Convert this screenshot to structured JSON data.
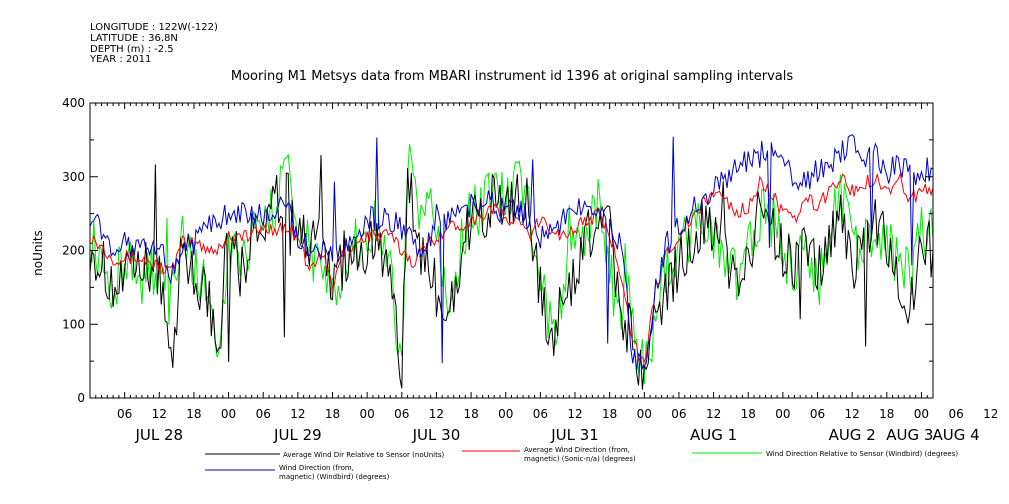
{
  "header": {
    "lines": [
      "LONGITUDE : 122W(-122)",
      "LATITUDE : 36.8N",
      "DEPTH (m) : -2.5",
      "YEAR : 2011"
    ]
  },
  "chart_data": {
    "type": "line",
    "title": "Mooring M1 Metsys data from MBARI instrument id 1396 at original sampling intervals",
    "ylabel": "noUnits",
    "ylim": [
      0,
      400
    ],
    "yticks": [
      0,
      100,
      200,
      300,
      400
    ],
    "xlim_hours": [
      0,
      146
    ],
    "x_hour_labels": [
      "06",
      "12",
      "18",
      "00",
      "06",
      "12",
      "18",
      "00",
      "06",
      "12",
      "18",
      "00",
      "06",
      "12",
      "18",
      "00",
      "06",
      "12",
      "18",
      "00",
      "06",
      "12",
      "18",
      "00",
      "06",
      "12",
      "18",
      "00",
      "06",
      "12",
      "18",
      "00"
    ],
    "day_labels": [
      "JUL 28",
      "JUL 29",
      "JUL 30",
      "JUL 31",
      "AUG 1",
      "AUG 2",
      "AUG 3",
      "AUG 4"
    ],
    "series": [
      {
        "name": "Average Wind Dir Relative to Sensor (noUnits)",
        "color": "#000000",
        "keypoints": [
          [
            0,
            210
          ],
          [
            4,
            150
          ],
          [
            8,
            170
          ],
          [
            12,
            180
          ],
          [
            14,
            40
          ],
          [
            16,
            210
          ],
          [
            18,
            170
          ],
          [
            21,
            120
          ],
          [
            22,
            40
          ],
          [
            24,
            230
          ],
          [
            26,
            170
          ],
          [
            28,
            220
          ],
          [
            30,
            240
          ],
          [
            34,
            280
          ],
          [
            36,
            230
          ],
          [
            38,
            200
          ],
          [
            40,
            210
          ],
          [
            42,
            150
          ],
          [
            44,
            190
          ],
          [
            46,
            200
          ],
          [
            48,
            200
          ],
          [
            50,
            230
          ],
          [
            52,
            150
          ],
          [
            54,
            20
          ],
          [
            55,
            300
          ],
          [
            57,
            200
          ],
          [
            60,
            150
          ],
          [
            62,
            100
          ],
          [
            66,
            250
          ],
          [
            68,
            240
          ],
          [
            70,
            270
          ],
          [
            72,
            240
          ],
          [
            74,
            280
          ],
          [
            76,
            240
          ],
          [
            78,
            140
          ],
          [
            80,
            80
          ],
          [
            82,
            140
          ],
          [
            84,
            160
          ],
          [
            86,
            230
          ],
          [
            88,
            220
          ],
          [
            90,
            240
          ],
          [
            92,
            100
          ],
          [
            94,
            100
          ],
          [
            95,
            20
          ],
          [
            97,
            60
          ],
          [
            98,
            110
          ],
          [
            100,
            150
          ],
          [
            104,
            220
          ],
          [
            106,
            230
          ],
          [
            108,
            240
          ],
          [
            110,
            200
          ],
          [
            112,
            150
          ],
          [
            114,
            200
          ],
          [
            116,
            250
          ],
          [
            118,
            230
          ],
          [
            120,
            200
          ],
          [
            122,
            170
          ],
          [
            124,
            200
          ],
          [
            126,
            170
          ],
          [
            128,
            200
          ],
          [
            130,
            260
          ],
          [
            132,
            180
          ],
          [
            134,
            200
          ],
          [
            136,
            230
          ],
          [
            138,
            210
          ],
          [
            140,
            150
          ],
          [
            142,
            130
          ],
          [
            144,
            210
          ],
          [
            146,
            200
          ]
        ]
      },
      {
        "name": "Average Wind Direction (from, magnetic) (Sonic-n/a) (degrees)",
        "color": "#ff0000",
        "keypoints": [
          [
            0,
            220
          ],
          [
            4,
            190
          ],
          [
            8,
            190
          ],
          [
            12,
            180
          ],
          [
            14,
            170
          ],
          [
            16,
            210
          ],
          [
            18,
            210
          ],
          [
            22,
            200
          ],
          [
            24,
            220
          ],
          [
            28,
            220
          ],
          [
            30,
            230
          ],
          [
            34,
            230
          ],
          [
            36,
            220
          ],
          [
            38,
            170
          ],
          [
            40,
            200
          ],
          [
            42,
            150
          ],
          [
            44,
            200
          ],
          [
            48,
            220
          ],
          [
            52,
            220
          ],
          [
            54,
            200
          ],
          [
            56,
            185
          ],
          [
            60,
            220
          ],
          [
            62,
            230
          ],
          [
            66,
            240
          ],
          [
            68,
            250
          ],
          [
            70,
            260
          ],
          [
            72,
            240
          ],
          [
            74,
            240
          ],
          [
            76,
            220
          ],
          [
            78,
            240
          ],
          [
            80,
            230
          ],
          [
            82,
            220
          ],
          [
            84,
            230
          ],
          [
            86,
            240
          ],
          [
            88,
            250
          ],
          [
            90,
            220
          ],
          [
            92,
            170
          ],
          [
            94,
            80
          ],
          [
            96,
            40
          ],
          [
            98,
            150
          ],
          [
            100,
            200
          ],
          [
            104,
            240
          ],
          [
            106,
            260
          ],
          [
            108,
            280
          ],
          [
            110,
            270
          ],
          [
            112,
            250
          ],
          [
            114,
            260
          ],
          [
            116,
            290
          ],
          [
            118,
            280
          ],
          [
            120,
            250
          ],
          [
            122,
            240
          ],
          [
            124,
            270
          ],
          [
            126,
            260
          ],
          [
            128,
            280
          ],
          [
            130,
            300
          ],
          [
            132,
            280
          ],
          [
            134,
            290
          ],
          [
            136,
            300
          ],
          [
            138,
            280
          ],
          [
            140,
            300
          ],
          [
            142,
            270
          ],
          [
            144,
            280
          ],
          [
            146,
            285
          ]
        ]
      },
      {
        "name": "Wind Direction Relative to Sensor (Windbird) (degrees)",
        "color": "#00ee00",
        "keypoints": [
          [
            0,
            230
          ],
          [
            4,
            150
          ],
          [
            6,
            190
          ],
          [
            8,
            160
          ],
          [
            12,
            180
          ],
          [
            14,
            120
          ],
          [
            16,
            240
          ],
          [
            18,
            170
          ],
          [
            21,
            140
          ],
          [
            22,
            20
          ],
          [
            24,
            220
          ],
          [
            26,
            150
          ],
          [
            28,
            240
          ],
          [
            30,
            260
          ],
          [
            32,
            240
          ],
          [
            34,
            330
          ],
          [
            36,
            230
          ],
          [
            38,
            200
          ],
          [
            40,
            170
          ],
          [
            42,
            140
          ],
          [
            44,
            190
          ],
          [
            46,
            210
          ],
          [
            48,
            220
          ],
          [
            50,
            240
          ],
          [
            52,
            170
          ],
          [
            54,
            30
          ],
          [
            55,
            330
          ],
          [
            57,
            260
          ],
          [
            60,
            240
          ],
          [
            62,
            110
          ],
          [
            64,
            200
          ],
          [
            66,
            260
          ],
          [
            68,
            250
          ],
          [
            70,
            300
          ],
          [
            72,
            260
          ],
          [
            74,
            290
          ],
          [
            76,
            250
          ],
          [
            78,
            180
          ],
          [
            80,
            80
          ],
          [
            82,
            120
          ],
          [
            84,
            240
          ],
          [
            86,
            220
          ],
          [
            88,
            260
          ],
          [
            90,
            170
          ],
          [
            92,
            100
          ],
          [
            94,
            140
          ],
          [
            95,
            30
          ],
          [
            97,
            60
          ],
          [
            98,
            120
          ],
          [
            100,
            180
          ],
          [
            104,
            220
          ],
          [
            106,
            230
          ],
          [
            108,
            220
          ],
          [
            110,
            190
          ],
          [
            112,
            160
          ],
          [
            114,
            200
          ],
          [
            116,
            250
          ],
          [
            118,
            240
          ],
          [
            120,
            200
          ],
          [
            122,
            170
          ],
          [
            124,
            220
          ],
          [
            126,
            150
          ],
          [
            128,
            220
          ],
          [
            130,
            290
          ],
          [
            132,
            200
          ],
          [
            134,
            220
          ],
          [
            136,
            230
          ],
          [
            138,
            220
          ],
          [
            140,
            180
          ],
          [
            142,
            160
          ],
          [
            144,
            230
          ],
          [
            146,
            215
          ]
        ]
      },
      {
        "name": "Wind Direction (from, magnetic) (Windbird) (degrees)",
        "color": "#0000cc",
        "keypoints": [
          [
            0,
            250
          ],
          [
            4,
            200
          ],
          [
            6,
            215
          ],
          [
            8,
            200
          ],
          [
            12,
            200
          ],
          [
            14,
            170
          ],
          [
            16,
            200
          ],
          [
            18,
            210
          ],
          [
            22,
            240
          ],
          [
            24,
            250
          ],
          [
            28,
            245
          ],
          [
            30,
            250
          ],
          [
            32,
            240
          ],
          [
            34,
            270
          ],
          [
            36,
            220
          ],
          [
            38,
            200
          ],
          [
            40,
            195
          ],
          [
            42,
            190
          ],
          [
            44,
            210
          ],
          [
            46,
            225
          ],
          [
            48,
            240
          ],
          [
            50,
            245
          ],
          [
            52,
            240
          ],
          [
            54,
            230
          ],
          [
            56,
            210
          ],
          [
            58,
            190
          ],
          [
            60,
            250
          ],
          [
            62,
            240
          ],
          [
            66,
            260
          ],
          [
            68,
            270
          ],
          [
            70,
            260
          ],
          [
            72,
            250
          ],
          [
            74,
            260
          ],
          [
            76,
            240
          ],
          [
            78,
            220
          ],
          [
            80,
            230
          ],
          [
            82,
            240
          ],
          [
            84,
            250
          ],
          [
            86,
            270
          ],
          [
            88,
            260
          ],
          [
            90,
            240
          ],
          [
            92,
            200
          ],
          [
            94,
            60
          ],
          [
            96,
            30
          ],
          [
            98,
            150
          ],
          [
            100,
            210
          ],
          [
            104,
            250
          ],
          [
            106,
            270
          ],
          [
            108,
            290
          ],
          [
            110,
            300
          ],
          [
            112,
            310
          ],
          [
            114,
            320
          ],
          [
            116,
            330
          ],
          [
            118,
            340
          ],
          [
            120,
            320
          ],
          [
            122,
            300
          ],
          [
            124,
            290
          ],
          [
            126,
            310
          ],
          [
            128,
            320
          ],
          [
            130,
            330
          ],
          [
            132,
            340
          ],
          [
            134,
            320
          ],
          [
            136,
            330
          ],
          [
            138,
            300
          ],
          [
            140,
            320
          ],
          [
            142,
            300
          ],
          [
            144,
            310
          ],
          [
            146,
            310
          ]
        ]
      }
    ]
  }
}
